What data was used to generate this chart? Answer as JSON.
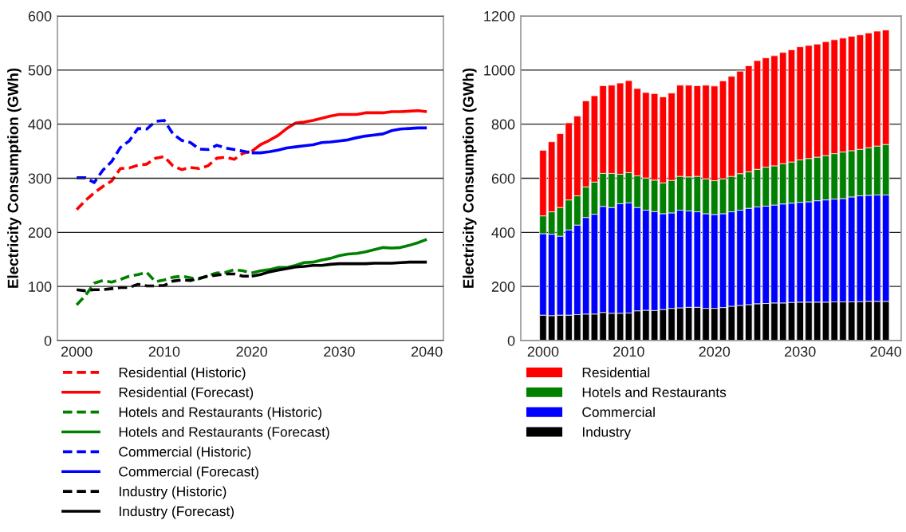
{
  "chart_data": [
    {
      "type": "line",
      "ylabel": "Electricity Consumption (GWh)",
      "xlim": [
        1997.8,
        2041.9
      ],
      "ylim": [
        0,
        600
      ],
      "xticks": [
        2000,
        2010,
        2020,
        2030,
        2040
      ],
      "yticks": [
        0,
        100,
        200,
        300,
        400,
        500,
        600
      ],
      "grid": "y",
      "legend": "bottom",
      "marker": "none",
      "series": [
        {
          "name": "Residential (Historic)",
          "color": "#ff0000",
          "line_style": "dashed",
          "x": [
            2000,
            2001,
            2002,
            2003,
            2004,
            2005,
            2006,
            2007,
            2008,
            2009,
            2010,
            2011,
            2012,
            2013,
            2014,
            2015,
            2016,
            2017,
            2018,
            2019,
            2020
          ],
          "values": [
            242,
            259,
            273,
            285,
            295,
            318,
            319,
            324,
            326,
            337,
            340,
            323,
            316,
            320,
            318,
            323,
            337,
            339,
            335,
            346,
            350
          ]
        },
        {
          "name": "Residential (Forecast)",
          "color": "#ff0000",
          "line_style": "solid",
          "x": [
            2020,
            2021,
            2022,
            2023,
            2024,
            2025,
            2026,
            2027,
            2028,
            2029,
            2030,
            2031,
            2032,
            2033,
            2034,
            2035,
            2036,
            2037,
            2038,
            2039,
            2040
          ],
          "values": [
            350,
            362,
            370,
            379,
            392,
            402,
            404,
            407,
            411,
            415,
            418,
            418,
            418,
            421,
            421,
            421,
            423,
            423,
            424,
            425,
            423
          ]
        },
        {
          "name": "Hotels and Restaurants (Historic)",
          "color": "#008000",
          "line_style": "dashed",
          "x": [
            2000,
            2001,
            2002,
            2003,
            2004,
            2005,
            2006,
            2007,
            2008,
            2009,
            2010,
            2011,
            2012,
            2013,
            2014,
            2015,
            2016,
            2017,
            2018,
            2019,
            2020
          ],
          "values": [
            66,
            83,
            106,
            111,
            108,
            113,
            119,
            122,
            126,
            109,
            112,
            117,
            119,
            116,
            114,
            120,
            125,
            126,
            131,
            129,
            125
          ]
        },
        {
          "name": "Hotels and Restaurants (Forecast)",
          "color": "#008000",
          "line_style": "solid",
          "x": [
            2020,
            2021,
            2022,
            2023,
            2024,
            2025,
            2026,
            2027,
            2028,
            2029,
            2030,
            2031,
            2032,
            2033,
            2034,
            2035,
            2036,
            2037,
            2038,
            2039,
            2040
          ],
          "values": [
            125,
            129,
            131,
            135,
            135,
            139,
            144,
            145,
            149,
            152,
            157,
            160,
            161,
            164,
            168,
            172,
            171,
            172,
            176,
            181,
            187
          ]
        },
        {
          "name": "Commercial (Historic)",
          "color": "#0000ff",
          "line_style": "dashed",
          "x": [
            2000,
            2001,
            2002,
            2003,
            2004,
            2005,
            2006,
            2007,
            2008,
            2009,
            2010,
            2011,
            2012,
            2013,
            2014,
            2015,
            2016,
            2017,
            2018,
            2019,
            2020
          ],
          "values": [
            301,
            301,
            292,
            315,
            331,
            357,
            369,
            392,
            391,
            405,
            407,
            382,
            370,
            366,
            354,
            353,
            361,
            356,
            353,
            350,
            347
          ]
        },
        {
          "name": "Commercial (Forecast)",
          "color": "#0000ff",
          "line_style": "solid",
          "x": [
            2020,
            2021,
            2022,
            2023,
            2024,
            2025,
            2026,
            2027,
            2028,
            2029,
            2030,
            2031,
            2032,
            2033,
            2034,
            2035,
            2036,
            2037,
            2038,
            2039,
            2040
          ],
          "values": [
            347,
            347,
            349,
            352,
            356,
            358,
            360,
            362,
            366,
            367,
            369,
            371,
            375,
            378,
            380,
            382,
            388,
            391,
            392,
            393,
            393
          ]
        },
        {
          "name": "Industry (Historic)",
          "color": "#000000",
          "line_style": "dashed",
          "x": [
            2000,
            2001,
            2002,
            2003,
            2004,
            2005,
            2006,
            2007,
            2008,
            2009,
            2010,
            2011,
            2012,
            2013,
            2014,
            2015,
            2016,
            2017,
            2018,
            2019,
            2020
          ],
          "values": [
            94,
            92,
            94,
            94,
            96,
            98,
            98,
            104,
            101,
            101,
            102,
            110,
            112,
            111,
            115,
            119,
            121,
            123,
            123,
            119,
            119
          ]
        },
        {
          "name": "Industry (Forecast)",
          "color": "#000000",
          "line_style": "solid",
          "x": [
            2020,
            2021,
            2022,
            2023,
            2024,
            2025,
            2026,
            2027,
            2028,
            2029,
            2030,
            2031,
            2032,
            2033,
            2034,
            2035,
            2036,
            2037,
            2038,
            2039,
            2040
          ],
          "values": [
            119,
            122,
            127,
            130,
            133,
            136,
            137,
            139,
            139,
            141,
            142,
            142,
            142,
            142,
            143,
            143,
            143,
            144,
            145,
            145,
            145
          ]
        }
      ]
    },
    {
      "type": "bar",
      "stacked": true,
      "ylabel": "Electricity Consumption (GWh)",
      "xlim": [
        1997.4,
        2041.8
      ],
      "ylim": [
        0,
        1200
      ],
      "xticks": [
        2000,
        2010,
        2020,
        2030,
        2040
      ],
      "yticks": [
        0,
        200,
        400,
        600,
        800,
        1000,
        1200
      ],
      "grid": "y",
      "legend": "bottom",
      "x": [
        2000,
        2001,
        2002,
        2003,
        2004,
        2005,
        2006,
        2007,
        2008,
        2009,
        2010,
        2011,
        2012,
        2013,
        2014,
        2015,
        2016,
        2017,
        2018,
        2019,
        2020,
        2021,
        2022,
        2023,
        2024,
        2025,
        2026,
        2027,
        2028,
        2029,
        2030,
        2031,
        2032,
        2033,
        2034,
        2035,
        2036,
        2037,
        2038,
        2039,
        2040
      ],
      "series": [
        {
          "name": "Industry",
          "color": "#000000",
          "values": [
            94,
            92,
            94,
            94,
            96,
            98,
            98,
            104,
            101,
            101,
            102,
            110,
            112,
            111,
            115,
            119,
            121,
            123,
            123,
            119,
            119,
            122,
            127,
            130,
            133,
            136,
            137,
            139,
            139,
            141,
            142,
            142,
            142,
            142,
            143,
            143,
            143,
            144,
            145,
            145,
            145
          ]
        },
        {
          "name": "Commercial",
          "color": "#0000ff",
          "values": [
            301,
            301,
            292,
            315,
            331,
            357,
            369,
            392,
            391,
            405,
            407,
            382,
            370,
            366,
            354,
            353,
            361,
            356,
            353,
            350,
            347,
            347,
            349,
            352,
            356,
            358,
            360,
            362,
            366,
            367,
            369,
            371,
            375,
            378,
            380,
            382,
            388,
            391,
            392,
            393,
            393
          ]
        },
        {
          "name": "Hotels and Restaurants",
          "color": "#008000",
          "values": [
            66,
            83,
            106,
            111,
            108,
            113,
            119,
            122,
            126,
            109,
            112,
            117,
            119,
            116,
            114,
            120,
            125,
            126,
            131,
            129,
            125,
            129,
            131,
            135,
            135,
            139,
            144,
            145,
            149,
            152,
            157,
            160,
            161,
            164,
            168,
            172,
            171,
            172,
            176,
            181,
            187
          ]
        },
        {
          "name": "Residential",
          "color": "#ff0000",
          "values": [
            242,
            259,
            273,
            285,
            295,
            318,
            319,
            324,
            326,
            337,
            340,
            323,
            316,
            320,
            318,
            323,
            337,
            339,
            335,
            346,
            350,
            362,
            370,
            379,
            392,
            402,
            404,
            407,
            411,
            415,
            418,
            418,
            418,
            421,
            421,
            421,
            423,
            423,
            424,
            425,
            423
          ]
        }
      ]
    }
  ]
}
